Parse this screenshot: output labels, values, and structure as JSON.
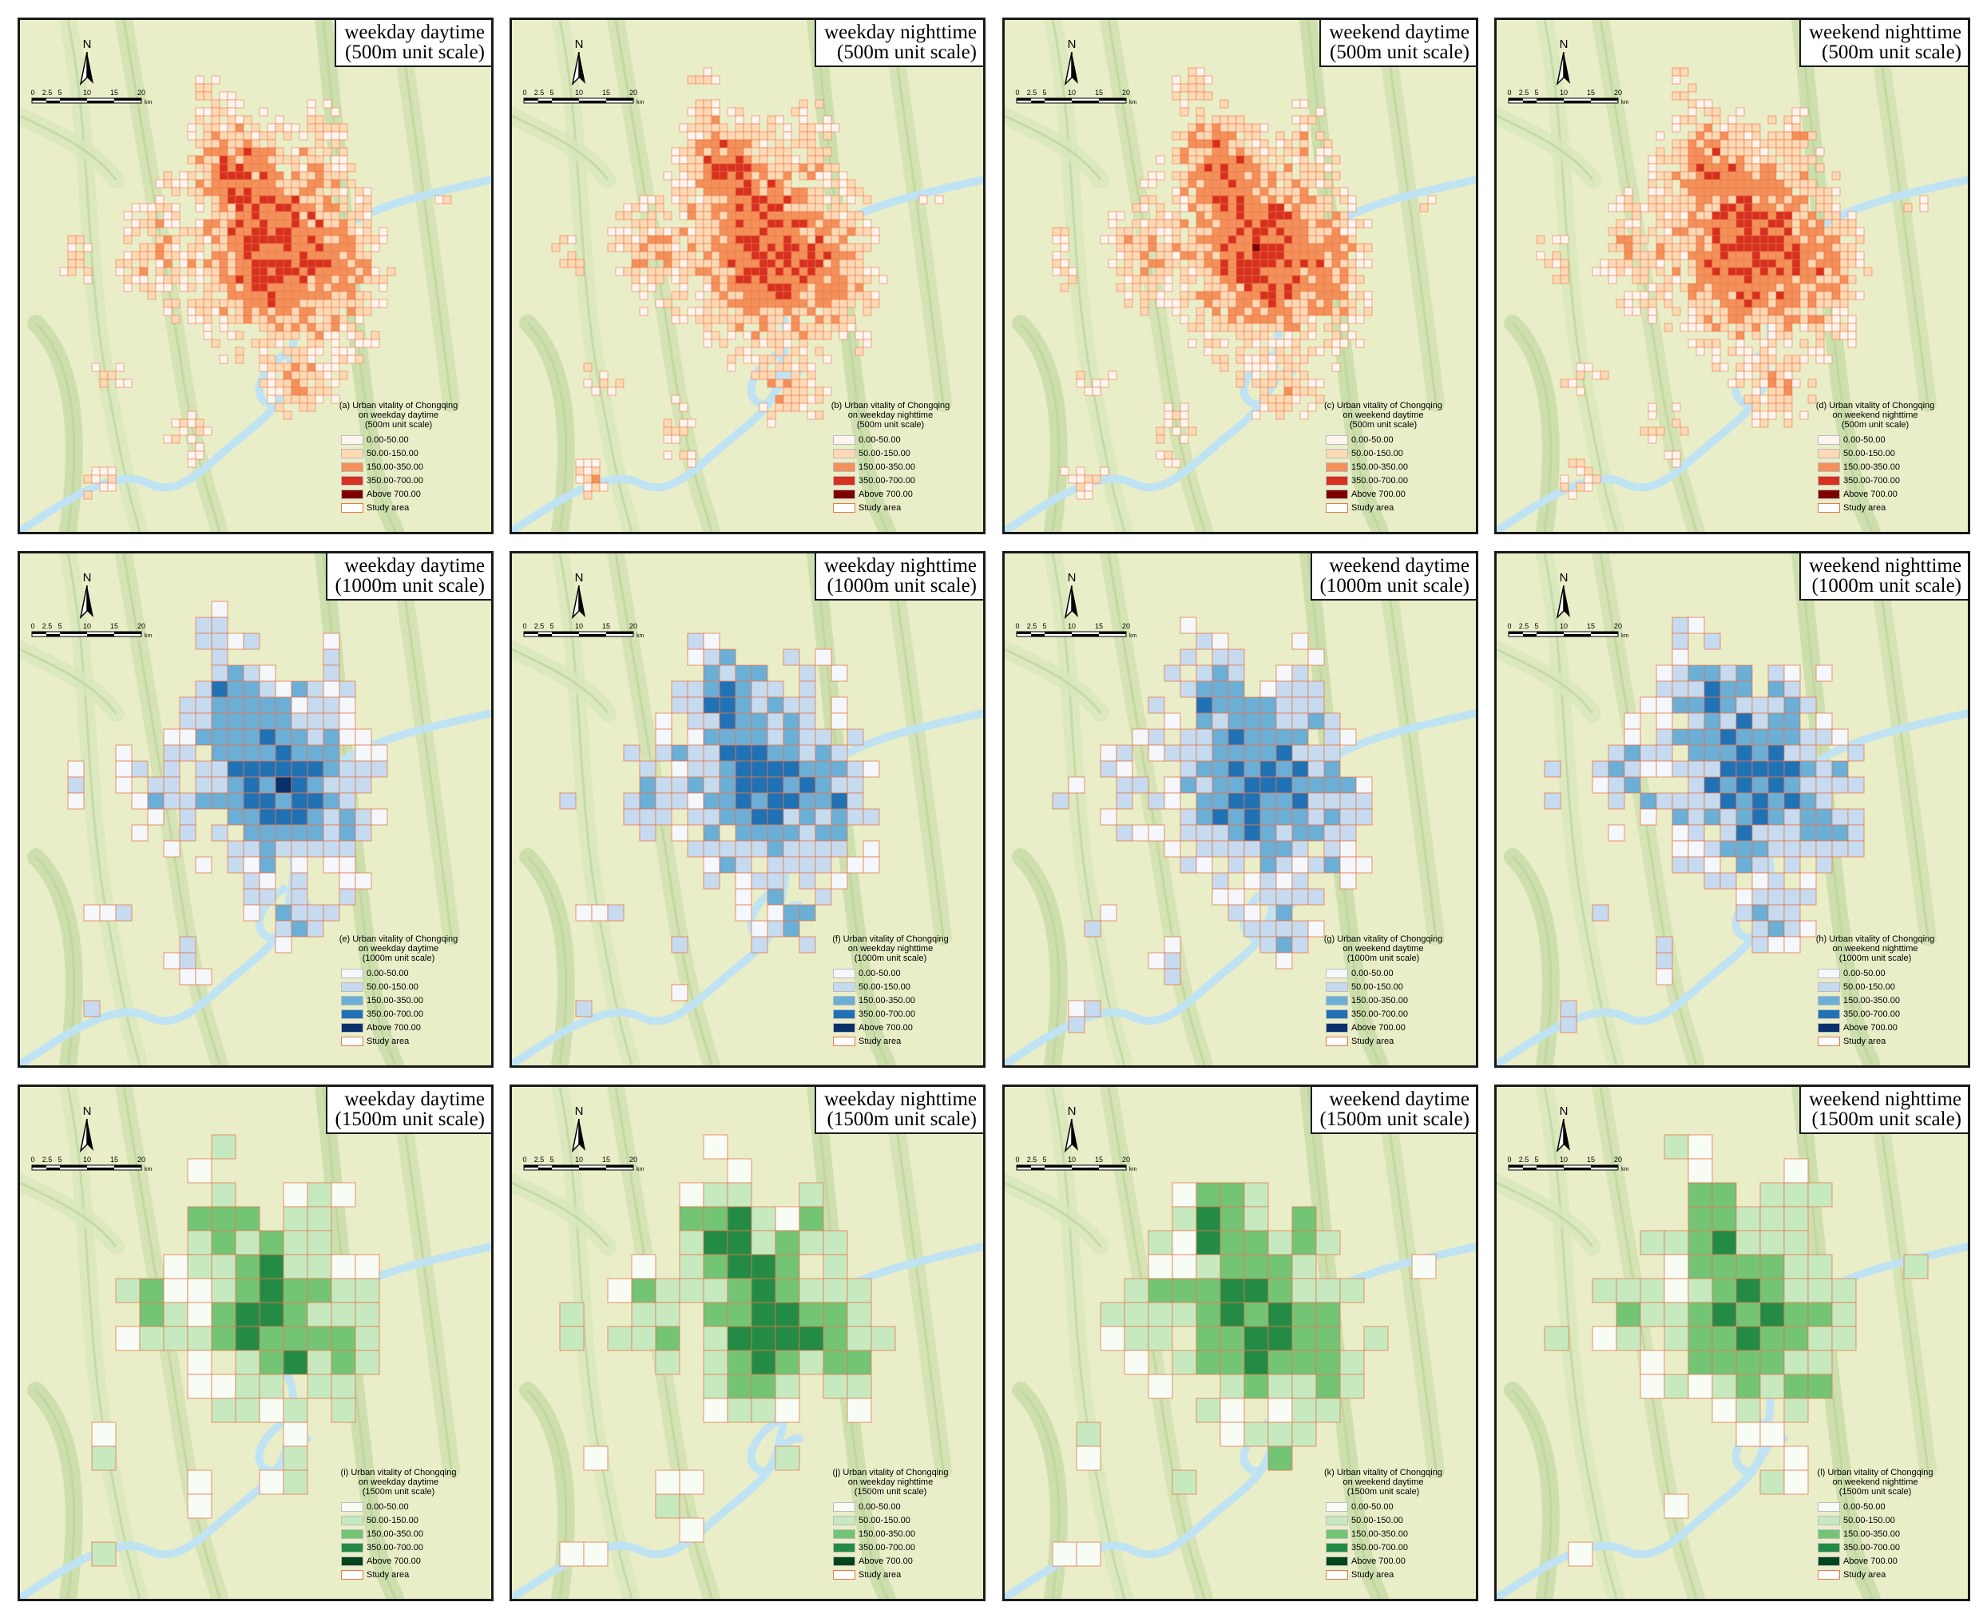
{
  "scale_bar": {
    "ticks": [
      "0",
      "2.5",
      "5",
      "10",
      "15",
      "20"
    ],
    "unit": "km"
  },
  "north_label": "N",
  "legend_labels": [
    "0.00-50.00",
    "50.00-150.00",
    "150.00-350.00",
    "350.00-700.00",
    "Above 700.00",
    "Study area"
  ],
  "study_area_color": "#e8774a",
  "river_color": "#bfe3f2",
  "terrain_color": "#eaeec8",
  "palettes": {
    "red": [
      "#fff5ee",
      "#fdd9b5",
      "#f4905a",
      "#d7301f",
      "#7f0000"
    ],
    "blue": [
      "#f4f8fc",
      "#c6dbef",
      "#6baed6",
      "#2171b5",
      "#08306b"
    ],
    "green": [
      "#f7fcf5",
      "#c7e9c0",
      "#74c476",
      "#238b45",
      "#00441b"
    ]
  },
  "panels": [
    {
      "letter": "a",
      "title1": "weekday daytime",
      "title2": "(500m unit scale)",
      "cap1": "(a) Urban vitality of Chongqing",
      "cap2": "on weekday daytime",
      "cap3": "(500m unit scale)",
      "palette": "red"
    },
    {
      "letter": "b",
      "title1": "weekday nighttime",
      "title2": "(500m unit scale)",
      "cap1": "(b) Urban vitality of Chongqing",
      "cap2": "on weekday nighttime",
      "cap3": "(500m unit scale)",
      "palette": "red"
    },
    {
      "letter": "c",
      "title1": "weekend daytime",
      "title2": "(500m unit scale)",
      "cap1": "(c) Urban vitality of Chongqing",
      "cap2": "on weekend daytime",
      "cap3": "(500m unit scale)",
      "palette": "red"
    },
    {
      "letter": "d",
      "title1": "weekend nighttime",
      "title2": "(500m unit scale)",
      "cap1": "(d) Urban vitality of Chongqing",
      "cap2": "on weekend nighttime",
      "cap3": "(500m unit scale)",
      "palette": "red"
    },
    {
      "letter": "e",
      "title1": "weekday daytime",
      "title2": "(1000m unit scale)",
      "cap1": "(e) Urban vitality of Chongqing",
      "cap2": "on weekday daytime",
      "cap3": "(1000m unit scale)",
      "palette": "blue"
    },
    {
      "letter": "f",
      "title1": "weekday nighttime",
      "title2": "(1000m unit scale)",
      "cap1": "(f) Urban vitality of Chongqing",
      "cap2": "on weekday nighttime",
      "cap3": "(1000m unit scale)",
      "palette": "blue"
    },
    {
      "letter": "g",
      "title1": "weekend daytime",
      "title2": "(1000m unit scale)",
      "cap1": "(g) Urban vitality of Chongqing",
      "cap2": "on weekend daytime",
      "cap3": "(1000m unit scale)",
      "palette": "blue"
    },
    {
      "letter": "h",
      "title1": "weekend nighttime",
      "title2": "(1000m unit scale)",
      "cap1": "(h) Urban vitality of Chongqing",
      "cap2": "on weekend nighttime",
      "cap3": "(1000m unit scale)",
      "palette": "blue"
    },
    {
      "letter": "i",
      "title1": "weekday daytime",
      "title2": "(1500m unit scale)",
      "cap1": "(i) Urban vitality of Chongqing",
      "cap2": "on weekday daytime",
      "cap3": "(1500m unit scale)",
      "palette": "green"
    },
    {
      "letter": "j",
      "title1": "weekday nighttime",
      "title2": "(1500m unit scale)",
      "cap1": "(j) Urban vitality of Chongqing",
      "cap2": "on weekday nighttime",
      "cap3": "(1500m unit scale)",
      "palette": "green"
    },
    {
      "letter": "k",
      "title1": "weekend daytime",
      "title2": "(1500m unit scale)",
      "cap1": "(k) Urban vitality of Chongqing",
      "cap2": "on weekend daytime",
      "cap3": "(1500m unit scale)",
      "palette": "green"
    },
    {
      "letter": "l",
      "title1": "weekend nighttime",
      "title2": "(1500m unit scale)",
      "cap1": "(l) Urban vitality of Chongqing",
      "cap2": "on weekend nighttime",
      "cap3": "(1500m unit scale)",
      "palette": "green"
    }
  ]
}
